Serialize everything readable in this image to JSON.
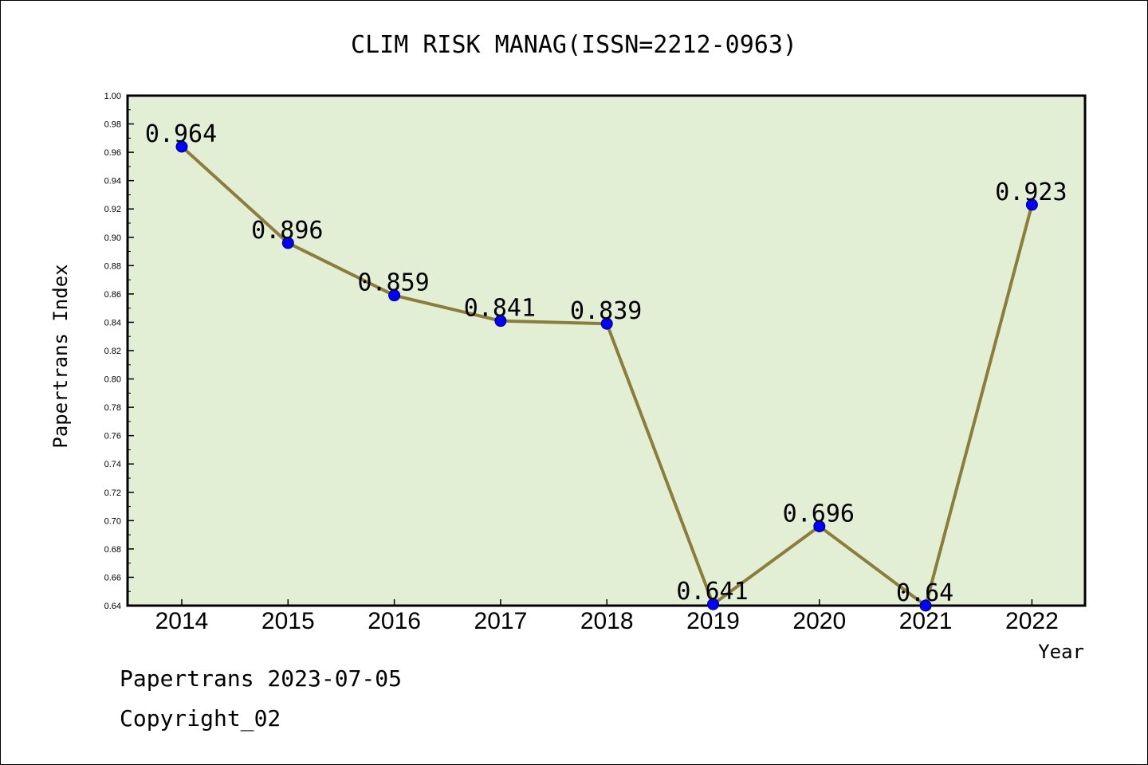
{
  "chart_data": {
    "type": "line",
    "title": "CLIM RISK MANAG(ISSN=2212-0963)",
    "xlabel": "Year",
    "ylabel": "Papertrans Index",
    "categories": [
      "2014",
      "2015",
      "2016",
      "2017",
      "2018",
      "2019",
      "2020",
      "2021",
      "2022"
    ],
    "series": [
      {
        "values": [
          0.964,
          0.896,
          0.859,
          0.841,
          0.839,
          0.641,
          0.696,
          0.64,
          0.923
        ],
        "labels": [
          "0.964",
          "0.896",
          "0.859",
          "0.841",
          "0.839",
          "0.641",
          "0.696",
          "0.64",
          "0.923"
        ]
      }
    ],
    "ylim": [
      0.64,
      1.0
    ],
    "yticks": [
      "0.64",
      "0.66",
      "0.68",
      "0.70",
      "0.72",
      "0.74",
      "0.76",
      "0.78",
      "0.80",
      "0.82",
      "0.84",
      "0.86",
      "0.88",
      "0.90",
      "0.92",
      "0.94",
      "0.96",
      "0.98",
      "1.00"
    ],
    "grid": false,
    "colors": {
      "plot_background": "#e2efd4",
      "line": "#8b7d3a",
      "marker": "#0000ff"
    }
  },
  "footer": {
    "line1": "Papertrans 2023-07-05",
    "line2": "Copyright_02"
  }
}
